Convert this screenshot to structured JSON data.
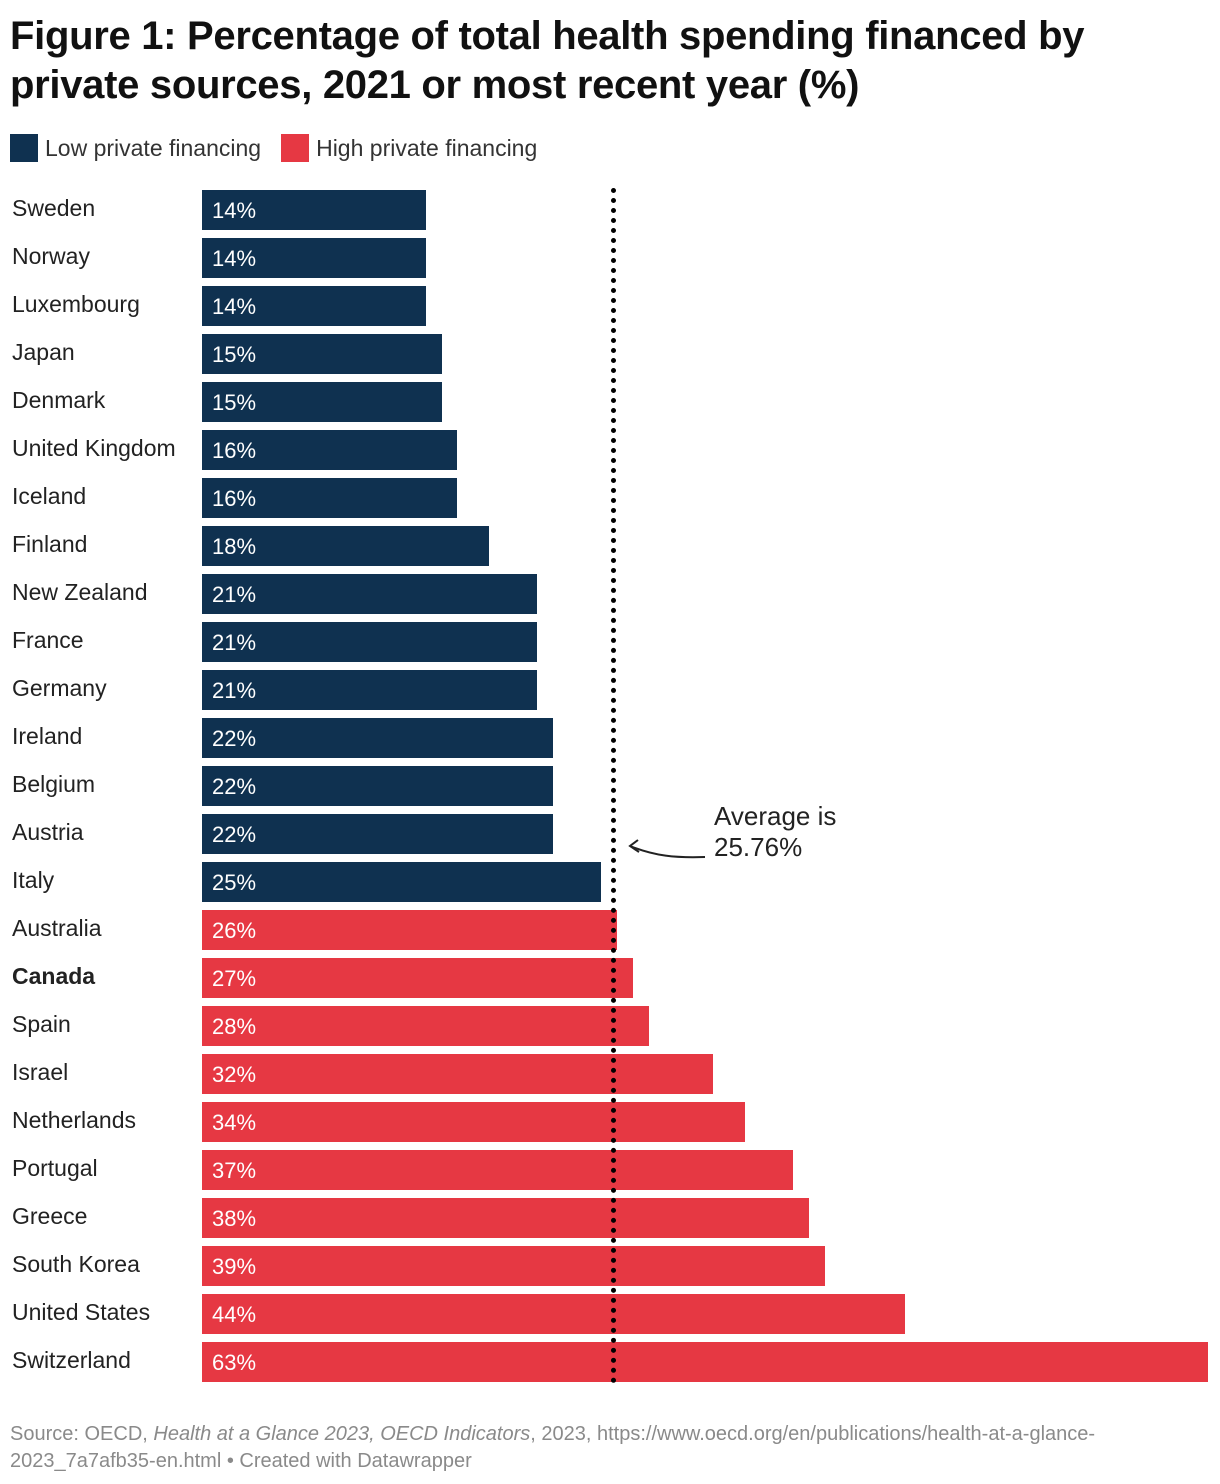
{
  "chart_data": {
    "type": "bar",
    "orientation": "horizontal",
    "title": "Figure 1: Percentage of total health spending financed by private sources, 2021 or most recent year (%)",
    "legend": [
      {
        "label": "Low private financing",
        "color": "#0f3150"
      },
      {
        "label": "High private financing",
        "color": "#e63843"
      }
    ],
    "legend_position": "top-left",
    "categories": [
      "Sweden",
      "Norway",
      "Luxembourg",
      "Japan",
      "Denmark",
      "United Kingdom",
      "Iceland",
      "Finland",
      "New Zealand",
      "France",
      "Germany",
      "Ireland",
      "Belgium",
      "Austria",
      "Italy",
      "Australia",
      "Canada",
      "Spain",
      "Israel",
      "Netherlands",
      "Portugal",
      "Greece",
      "South Korea",
      "United States",
      "Switzerland"
    ],
    "values": [
      14,
      14,
      14,
      15,
      15,
      16,
      16,
      18,
      21,
      21,
      21,
      22,
      22,
      22,
      25,
      26,
      27,
      28,
      32,
      34,
      37,
      38,
      39,
      44,
      63
    ],
    "groups": [
      "low",
      "low",
      "low",
      "low",
      "low",
      "low",
      "low",
      "low",
      "low",
      "low",
      "low",
      "low",
      "low",
      "low",
      "low",
      "high",
      "high",
      "high",
      "high",
      "high",
      "high",
      "high",
      "high",
      "high",
      "high"
    ],
    "highlighted_category": "Canada",
    "value_suffix": "%",
    "xlim": [
      0,
      63
    ],
    "grid": false,
    "reference_line": {
      "value": 25.76,
      "annotation_line1": "Average is",
      "annotation_line2": "25.76%"
    }
  },
  "footer": {
    "source_prefix": "Source: OECD, ",
    "source_title": "Health at a Glance 2023, OECD Indicators",
    "source_rest": ", 2023, https://www.oecd.org/en/publications/health-at-a-glance-2023_7a7afb35-en.html • Created with Datawrapper"
  }
}
